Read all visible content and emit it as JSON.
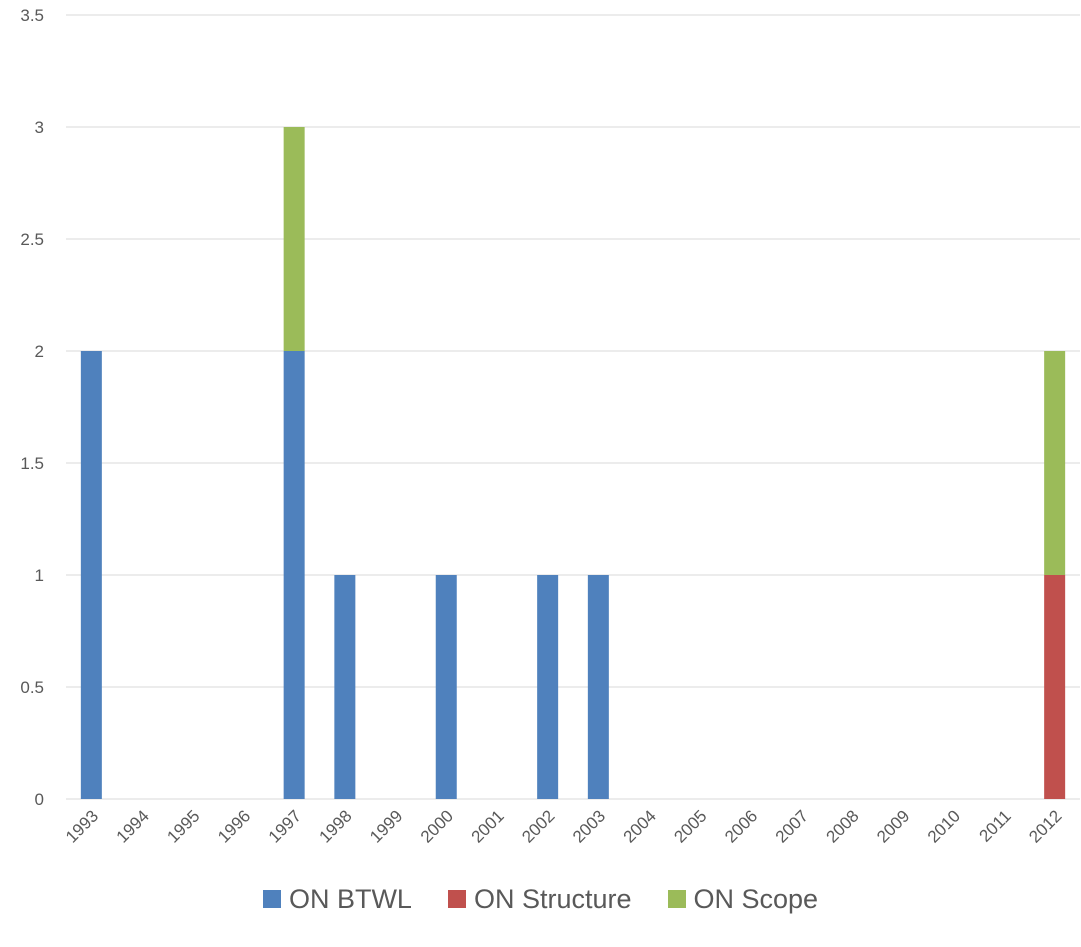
{
  "chart_data": {
    "type": "bar",
    "stacked": true,
    "title": "",
    "xlabel": "",
    "ylabel": "",
    "ylim": [
      0,
      3.5
    ],
    "yticks": [
      "0",
      "0.5",
      "1",
      "1.5",
      "2",
      "2.5",
      "3",
      "3.5"
    ],
    "grid": true,
    "legend_position": "bottom",
    "categories": [
      "1993",
      "1994",
      "1995",
      "1996",
      "1997",
      "1998",
      "1999",
      "2000",
      "2001",
      "2002",
      "2003",
      "2004",
      "2005",
      "2006",
      "2007",
      "2008",
      "2009",
      "2010",
      "2011",
      "2012"
    ],
    "series": [
      {
        "name": "ON BTWL",
        "color": "#4F81BD",
        "values": [
          2,
          0,
          0,
          0,
          2,
          1,
          0,
          1,
          0,
          1,
          1,
          0,
          0,
          0,
          0,
          0,
          0,
          0,
          0,
          0
        ]
      },
      {
        "name": "ON Structure",
        "color": "#C0504D",
        "values": [
          0,
          0,
          0,
          0,
          0,
          0,
          0,
          0,
          0,
          0,
          0,
          0,
          0,
          0,
          0,
          0,
          0,
          0,
          0,
          1
        ]
      },
      {
        "name": "ON Scope",
        "color": "#9BBB59",
        "values": [
          0,
          0,
          0,
          0,
          1,
          0,
          0,
          0,
          0,
          0,
          0,
          0,
          0,
          0,
          0,
          0,
          0,
          0,
          0,
          1
        ]
      }
    ]
  }
}
